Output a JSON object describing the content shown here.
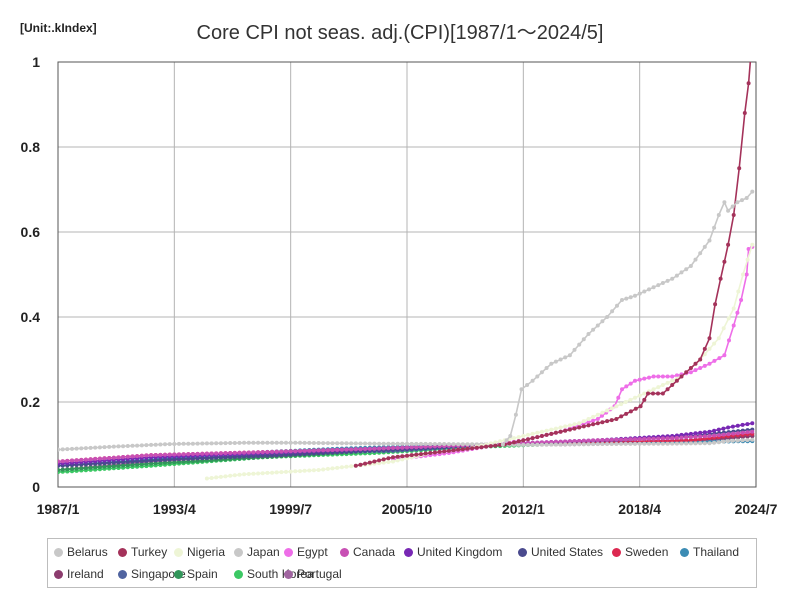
{
  "header": {
    "unit": "[Unit:.kIndex]",
    "title": "Core CPI not seas. adj.(CPI)[1987/1～2024/5]"
  },
  "chart_data": {
    "type": "line",
    "title": "Core CPI not seas. adj.(CPI)[1987/1～2024/5]",
    "xlabel": "",
    "ylabel": "",
    "x_ticks": [
      "1987/1",
      "1993/4",
      "1999/7",
      "2005/10",
      "2012/1",
      "2018/4",
      "2024/7"
    ],
    "y_ticks": [
      "0",
      "0.2",
      "0.4",
      "0.6",
      "0.8",
      "1"
    ],
    "xlim": [
      1987.0,
      2024.5
    ],
    "ylim": [
      0,
      1
    ],
    "grid": true,
    "legend_position": "bottom",
    "series": [
      {
        "name": "Belarus",
        "color": "#c8c8c8",
        "points": [
          [
            2010.9,
            0.1
          ],
          [
            2011.3,
            0.12
          ],
          [
            2011.6,
            0.17
          ],
          [
            2011.9,
            0.23
          ],
          [
            2012.5,
            0.25
          ],
          [
            2013.5,
            0.29
          ],
          [
            2014.5,
            0.31
          ],
          [
            2015.5,
            0.36
          ],
          [
            2016.5,
            0.4
          ],
          [
            2017.3,
            0.44
          ],
          [
            2018.0,
            0.45
          ],
          [
            2019.0,
            0.47
          ],
          [
            2020.0,
            0.49
          ],
          [
            2021.0,
            0.52
          ],
          [
            2022.0,
            0.58
          ],
          [
            2022.5,
            0.64
          ],
          [
            2022.8,
            0.67
          ],
          [
            2023.0,
            0.65
          ],
          [
            2023.5,
            0.67
          ],
          [
            2024.0,
            0.68
          ],
          [
            2024.3,
            0.695
          ]
        ]
      },
      {
        "name": "Turkey",
        "color": "#a4325a",
        "points": [
          [
            2003.0,
            0.05
          ],
          [
            2005.0,
            0.07
          ],
          [
            2007.0,
            0.08
          ],
          [
            2009.0,
            0.09
          ],
          [
            2011.0,
            0.1
          ],
          [
            2013.0,
            0.12
          ],
          [
            2015.0,
            0.14
          ],
          [
            2017.0,
            0.16
          ],
          [
            2018.3,
            0.19
          ],
          [
            2018.7,
            0.22
          ],
          [
            2019.5,
            0.22
          ],
          [
            2020.5,
            0.26
          ],
          [
            2021.5,
            0.3
          ],
          [
            2022.0,
            0.35
          ],
          [
            2022.3,
            0.43
          ],
          [
            2022.6,
            0.49
          ],
          [
            2023.0,
            0.57
          ],
          [
            2023.3,
            0.64
          ],
          [
            2023.6,
            0.75
          ],
          [
            2023.9,
            0.88
          ],
          [
            2024.1,
            0.95
          ],
          [
            2024.3,
            1.06
          ]
        ]
      },
      {
        "name": "Nigeria",
        "color": "#eef5d6",
        "points": [
          [
            1995.0,
            0.02
          ],
          [
            1997.0,
            0.03
          ],
          [
            1999.0,
            0.035
          ],
          [
            2001.0,
            0.04
          ],
          [
            2003.0,
            0.05
          ],
          [
            2005.0,
            0.06
          ],
          [
            2007.0,
            0.08
          ],
          [
            2009.0,
            0.09
          ],
          [
            2011.0,
            0.11
          ],
          [
            2013.0,
            0.13
          ],
          [
            2015.0,
            0.15
          ],
          [
            2017.0,
            0.19
          ],
          [
            2019.0,
            0.23
          ],
          [
            2020.5,
            0.26
          ],
          [
            2021.5,
            0.3
          ],
          [
            2022.5,
            0.35
          ],
          [
            2023.3,
            0.42
          ],
          [
            2023.8,
            0.5
          ],
          [
            2024.3,
            0.57
          ]
        ]
      },
      {
        "name": "Japan",
        "color": "#c8c8c8",
        "points": [
          [
            1987.0,
            0.088
          ],
          [
            1990.0,
            0.095
          ],
          [
            1993.0,
            0.101
          ],
          [
            1997.0,
            0.104
          ],
          [
            2000.0,
            0.104
          ],
          [
            2004.0,
            0.102
          ],
          [
            2008.0,
            0.101
          ],
          [
            2012.0,
            0.099
          ],
          [
            2016.0,
            0.101
          ],
          [
            2020.0,
            0.102
          ],
          [
            2022.0,
            0.103
          ],
          [
            2023.0,
            0.108
          ],
          [
            2024.3,
            0.111
          ]
        ]
      },
      {
        "name": "Egypt",
        "color": "#ee6ee8",
        "points": [
          [
            2005.0,
            0.065
          ],
          [
            2008.0,
            0.08
          ],
          [
            2010.0,
            0.095
          ],
          [
            2012.0,
            0.11
          ],
          [
            2014.0,
            0.13
          ],
          [
            2016.0,
            0.16
          ],
          [
            2016.9,
            0.19
          ],
          [
            2017.3,
            0.23
          ],
          [
            2018.0,
            0.25
          ],
          [
            2019.0,
            0.26
          ],
          [
            2020.0,
            0.26
          ],
          [
            2021.0,
            0.27
          ],
          [
            2022.0,
            0.29
          ],
          [
            2022.8,
            0.31
          ],
          [
            2023.3,
            0.38
          ],
          [
            2023.7,
            0.44
          ],
          [
            2024.0,
            0.5
          ],
          [
            2024.1,
            0.56
          ],
          [
            2024.3,
            0.565
          ]
        ]
      },
      {
        "name": "Canada",
        "color": "#c850b4",
        "points": [
          [
            1987.0,
            0.06
          ],
          [
            1992.0,
            0.075
          ],
          [
            1998.0,
            0.082
          ],
          [
            2004.0,
            0.09
          ],
          [
            2010.0,
            0.1
          ],
          [
            2016.0,
            0.11
          ],
          [
            2020.0,
            0.115
          ],
          [
            2022.0,
            0.12
          ],
          [
            2024.3,
            0.13
          ]
        ]
      },
      {
        "name": "United Kingdom",
        "color": "#7828b4",
        "points": [
          [
            1987.0,
            0.055
          ],
          [
            1992.0,
            0.07
          ],
          [
            1998.0,
            0.08
          ],
          [
            2004.0,
            0.09
          ],
          [
            2010.0,
            0.1
          ],
          [
            2016.0,
            0.11
          ],
          [
            2020.0,
            0.12
          ],
          [
            2022.0,
            0.13
          ],
          [
            2023.0,
            0.14
          ],
          [
            2024.3,
            0.15
          ]
        ]
      },
      {
        "name": "United States",
        "color": "#4a4a8e",
        "points": [
          [
            1987.0,
            0.05
          ],
          [
            1993.0,
            0.065
          ],
          [
            1999.0,
            0.075
          ],
          [
            2005.0,
            0.088
          ],
          [
            2011.0,
            0.1
          ],
          [
            2017.0,
            0.11
          ],
          [
            2021.0,
            0.12
          ],
          [
            2024.3,
            0.135
          ]
        ]
      },
      {
        "name": "Sweden",
        "color": "#dc2850",
        "points": [
          [
            1987.0,
            0.06
          ],
          [
            1992.0,
            0.075
          ],
          [
            1998.0,
            0.082
          ],
          [
            2004.0,
            0.09
          ],
          [
            2010.0,
            0.1
          ],
          [
            2016.0,
            0.105
          ],
          [
            2021.0,
            0.11
          ],
          [
            2023.0,
            0.12
          ],
          [
            2024.3,
            0.125
          ]
        ]
      },
      {
        "name": "Thailand",
        "color": "#3c8cb4",
        "points": [
          [
            1987.0,
            0.05
          ],
          [
            1992.0,
            0.065
          ],
          [
            1997.0,
            0.08
          ],
          [
            2002.0,
            0.09
          ],
          [
            2008.0,
            0.098
          ],
          [
            2014.0,
            0.105
          ],
          [
            2020.0,
            0.105
          ],
          [
            2024.3,
            0.108
          ]
        ]
      },
      {
        "name": "Ireland",
        "color": "#8c3c6e",
        "points": [
          [
            1987.0,
            0.05
          ],
          [
            1993.0,
            0.065
          ],
          [
            1999.0,
            0.075
          ],
          [
            2005.0,
            0.09
          ],
          [
            2008.5,
            0.1
          ],
          [
            2014.0,
            0.1
          ],
          [
            2020.0,
            0.105
          ],
          [
            2024.3,
            0.12
          ]
        ]
      },
      {
        "name": "Singapore",
        "color": "#5064a0",
        "points": [
          [
            1987.0,
            0.05
          ],
          [
            1993.0,
            0.065
          ],
          [
            1999.0,
            0.08
          ],
          [
            2005.0,
            0.085
          ],
          [
            2011.0,
            0.1
          ],
          [
            2017.0,
            0.105
          ],
          [
            2021.0,
            0.11
          ],
          [
            2024.3,
            0.12
          ]
        ]
      },
      {
        "name": "Spain",
        "color": "#32965a",
        "points": [
          [
            1987.0,
            0.04
          ],
          [
            1992.0,
            0.055
          ],
          [
            1998.0,
            0.07
          ],
          [
            2004.0,
            0.085
          ],
          [
            2010.0,
            0.1
          ],
          [
            2016.0,
            0.105
          ],
          [
            2021.0,
            0.11
          ],
          [
            2024.3,
            0.125
          ]
        ]
      },
      {
        "name": "South Korea",
        "color": "#3cc864",
        "points": [
          [
            1987.0,
            0.035
          ],
          [
            1992.0,
            0.05
          ],
          [
            1998.0,
            0.07
          ],
          [
            2004.0,
            0.08
          ],
          [
            2010.0,
            0.095
          ],
          [
            2016.0,
            0.105
          ],
          [
            2021.0,
            0.11
          ],
          [
            2024.3,
            0.12
          ]
        ]
      },
      {
        "name": "Portugal",
        "color": "#a064a0",
        "points": [
          [
            1987.0,
            0.04
          ],
          [
            1992.0,
            0.06
          ],
          [
            1998.0,
            0.075
          ],
          [
            2004.0,
            0.088
          ],
          [
            2010.0,
            0.1
          ],
          [
            2016.0,
            0.102
          ],
          [
            2021.0,
            0.105
          ],
          [
            2024.3,
            0.12
          ]
        ]
      }
    ]
  }
}
